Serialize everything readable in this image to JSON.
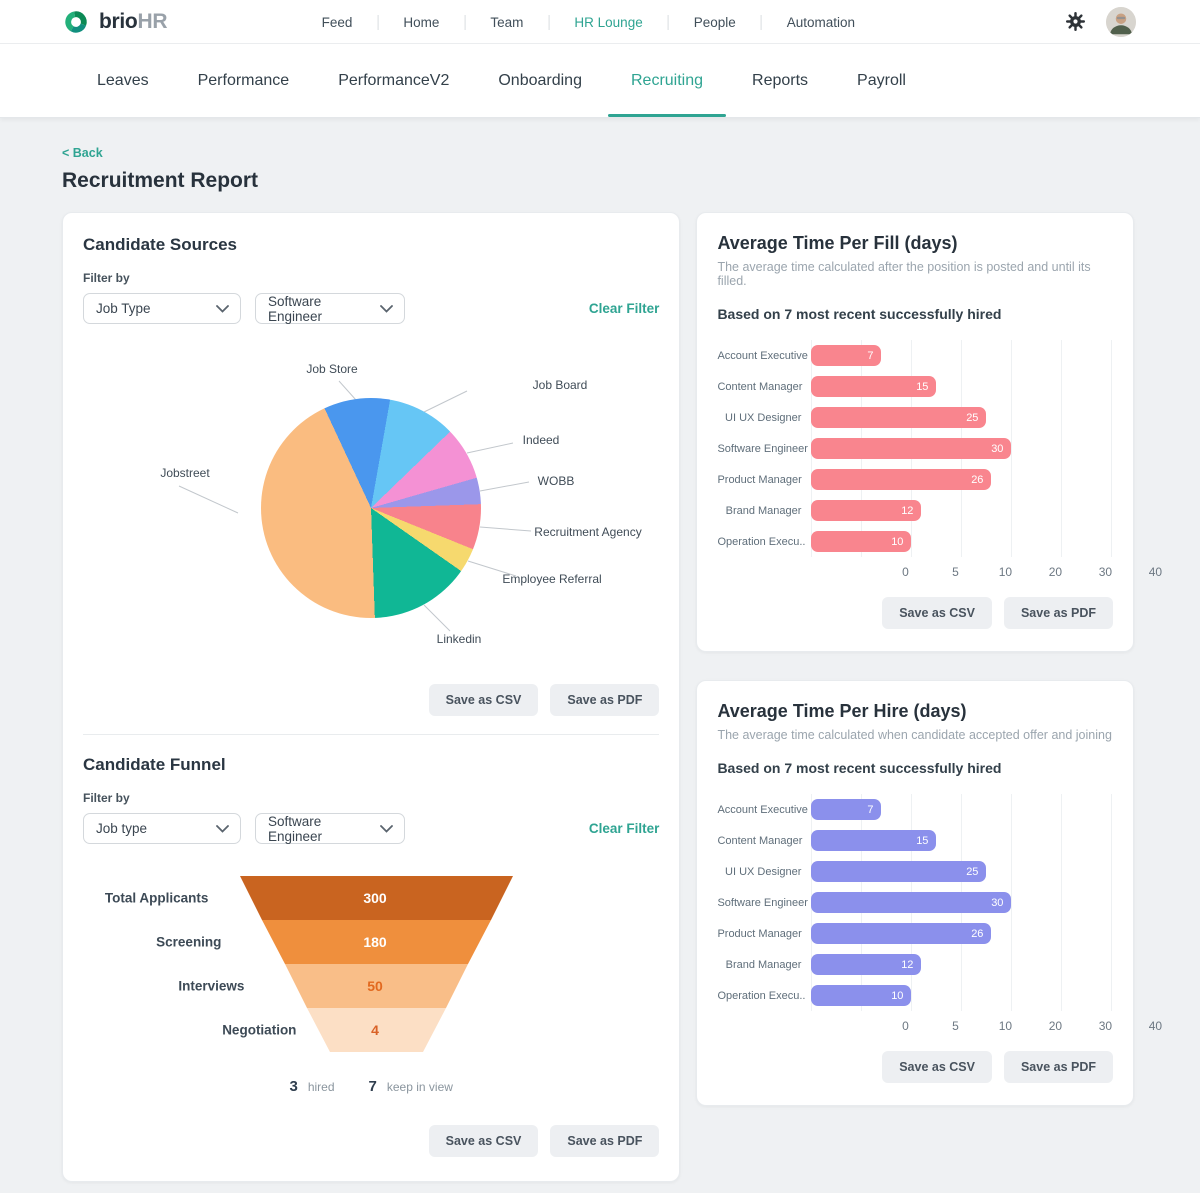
{
  "header": {
    "brand": {
      "name": "brio",
      "suffix": "HR"
    },
    "nav": [
      "Feed",
      "Home",
      "Team",
      "HR Lounge",
      "People",
      "Automation"
    ],
    "active_nav": "HR Lounge"
  },
  "tabs": {
    "items": [
      "Leaves",
      "Performance",
      "PerformanceV2",
      "Onboarding",
      "Recruiting",
      "Reports",
      "Payroll"
    ],
    "active": "Recruiting"
  },
  "page": {
    "back": "< Back",
    "title": "Recruitment Report"
  },
  "cards": {
    "sources": {
      "title": "Candidate Sources",
      "filter_label": "Filter by",
      "filter_type": "Job Type",
      "filter_job": "Software Engineer",
      "clear": "Clear Filter",
      "save_csv": "Save as CSV",
      "save_pdf": "Save as PDF"
    },
    "funnel": {
      "title": "Candidate Funnel",
      "filter_label": "Filter by",
      "filter_type": "Job type",
      "filter_job": "Software Engineer",
      "clear": "Clear Filter",
      "save_csv": "Save as CSV",
      "save_pdf": "Save as PDF"
    },
    "fill": {
      "title": "Average Time Per Fill (days)",
      "subtitle": "The average time calculated after the position is posted and until its filled.",
      "based_on": "Based on 7 most recent successfully hired",
      "save_csv": "Save as CSV",
      "save_pdf": "Save as PDF"
    },
    "hire": {
      "title": "Average Time Per Hire (days)",
      "subtitle": "The average time calculated when candidate accepted offer and joining",
      "based_on": "Based on 7 most recent successfully hired",
      "save_csv": "Save as CSV",
      "save_pdf": "Save as PDF"
    }
  },
  "colors": {
    "accent_teal": "#2fa492",
    "fill_bar": "#f9858e",
    "hire_bar": "#8b90ec"
  },
  "chart_data": [
    {
      "id": "sources",
      "type": "pie",
      "title": "Candidate Sources",
      "labels": [
        "Job Store",
        "Job Board",
        "Indeed",
        "WOBB",
        "Recruitment Agency",
        "Employee Referral",
        "Linkedin",
        "Jobstreet"
      ],
      "colors": [
        "#4a97ee",
        "#66c6f5",
        "#f491d4",
        "#9b97ea",
        "#f8838c",
        "#f6d96e",
        "#10b795",
        "#fabc80"
      ],
      "start_deg": 335,
      "deg": [
        35,
        36,
        28,
        14,
        24,
        13,
        53,
        157
      ],
      "approx_pct": [
        9.7,
        10.0,
        7.8,
        3.9,
        6.7,
        3.6,
        14.7,
        43.6
      ],
      "legend_position": "callout-labels"
    },
    {
      "id": "funnel",
      "type": "funnel",
      "title": "Candidate Funnel",
      "stages": [
        "Total Applicants",
        "Screening",
        "Interviews",
        "Negotiation"
      ],
      "values": [
        300,
        180,
        50,
        4
      ],
      "colors": [
        "#c96420",
        "#ef8f3d",
        "#f9be88",
        "#fcdfc5"
      ],
      "value_colors": [
        "#ffffff",
        "#ffffff",
        "#e2691f",
        "#d96227"
      ],
      "hired": 3,
      "hired_label": "hired",
      "keep_in_view": 7,
      "keep_label": "keep in view"
    },
    {
      "id": "fill",
      "type": "bar",
      "orientation": "horizontal",
      "title": "Average Time Per Fill (days)",
      "categories": [
        "Account Executive",
        "Content Manager",
        "UI UX Designer",
        "Software Engineer",
        "Product Manager",
        "Brand Manager",
        "Operation Execu.."
      ],
      "values": [
        7,
        15,
        25,
        30,
        26,
        12,
        10
      ],
      "bar_color": "#f9858e",
      "ticks": [
        "0",
        "5",
        "10",
        "20",
        "30",
        "40"
      ],
      "tick_values": [
        0,
        5,
        10,
        20,
        30,
        40
      ],
      "grid": true,
      "xlabel": "",
      "ylabel": ""
    },
    {
      "id": "hire",
      "type": "bar",
      "orientation": "horizontal",
      "title": "Average Time Per Hire (days)",
      "categories": [
        "Account Executive",
        "Content Manager",
        "UI UX Designer",
        "Software Engineer",
        "Product Manager",
        "Brand Manager",
        "Operation Execu.."
      ],
      "values": [
        7,
        15,
        25,
        30,
        26,
        12,
        10
      ],
      "bar_color": "#8b90ec",
      "ticks": [
        "0",
        "5",
        "10",
        "20",
        "30",
        "40"
      ],
      "tick_values": [
        0,
        5,
        10,
        20,
        30,
        40
      ],
      "grid": true,
      "xlabel": "",
      "ylabel": ""
    }
  ]
}
